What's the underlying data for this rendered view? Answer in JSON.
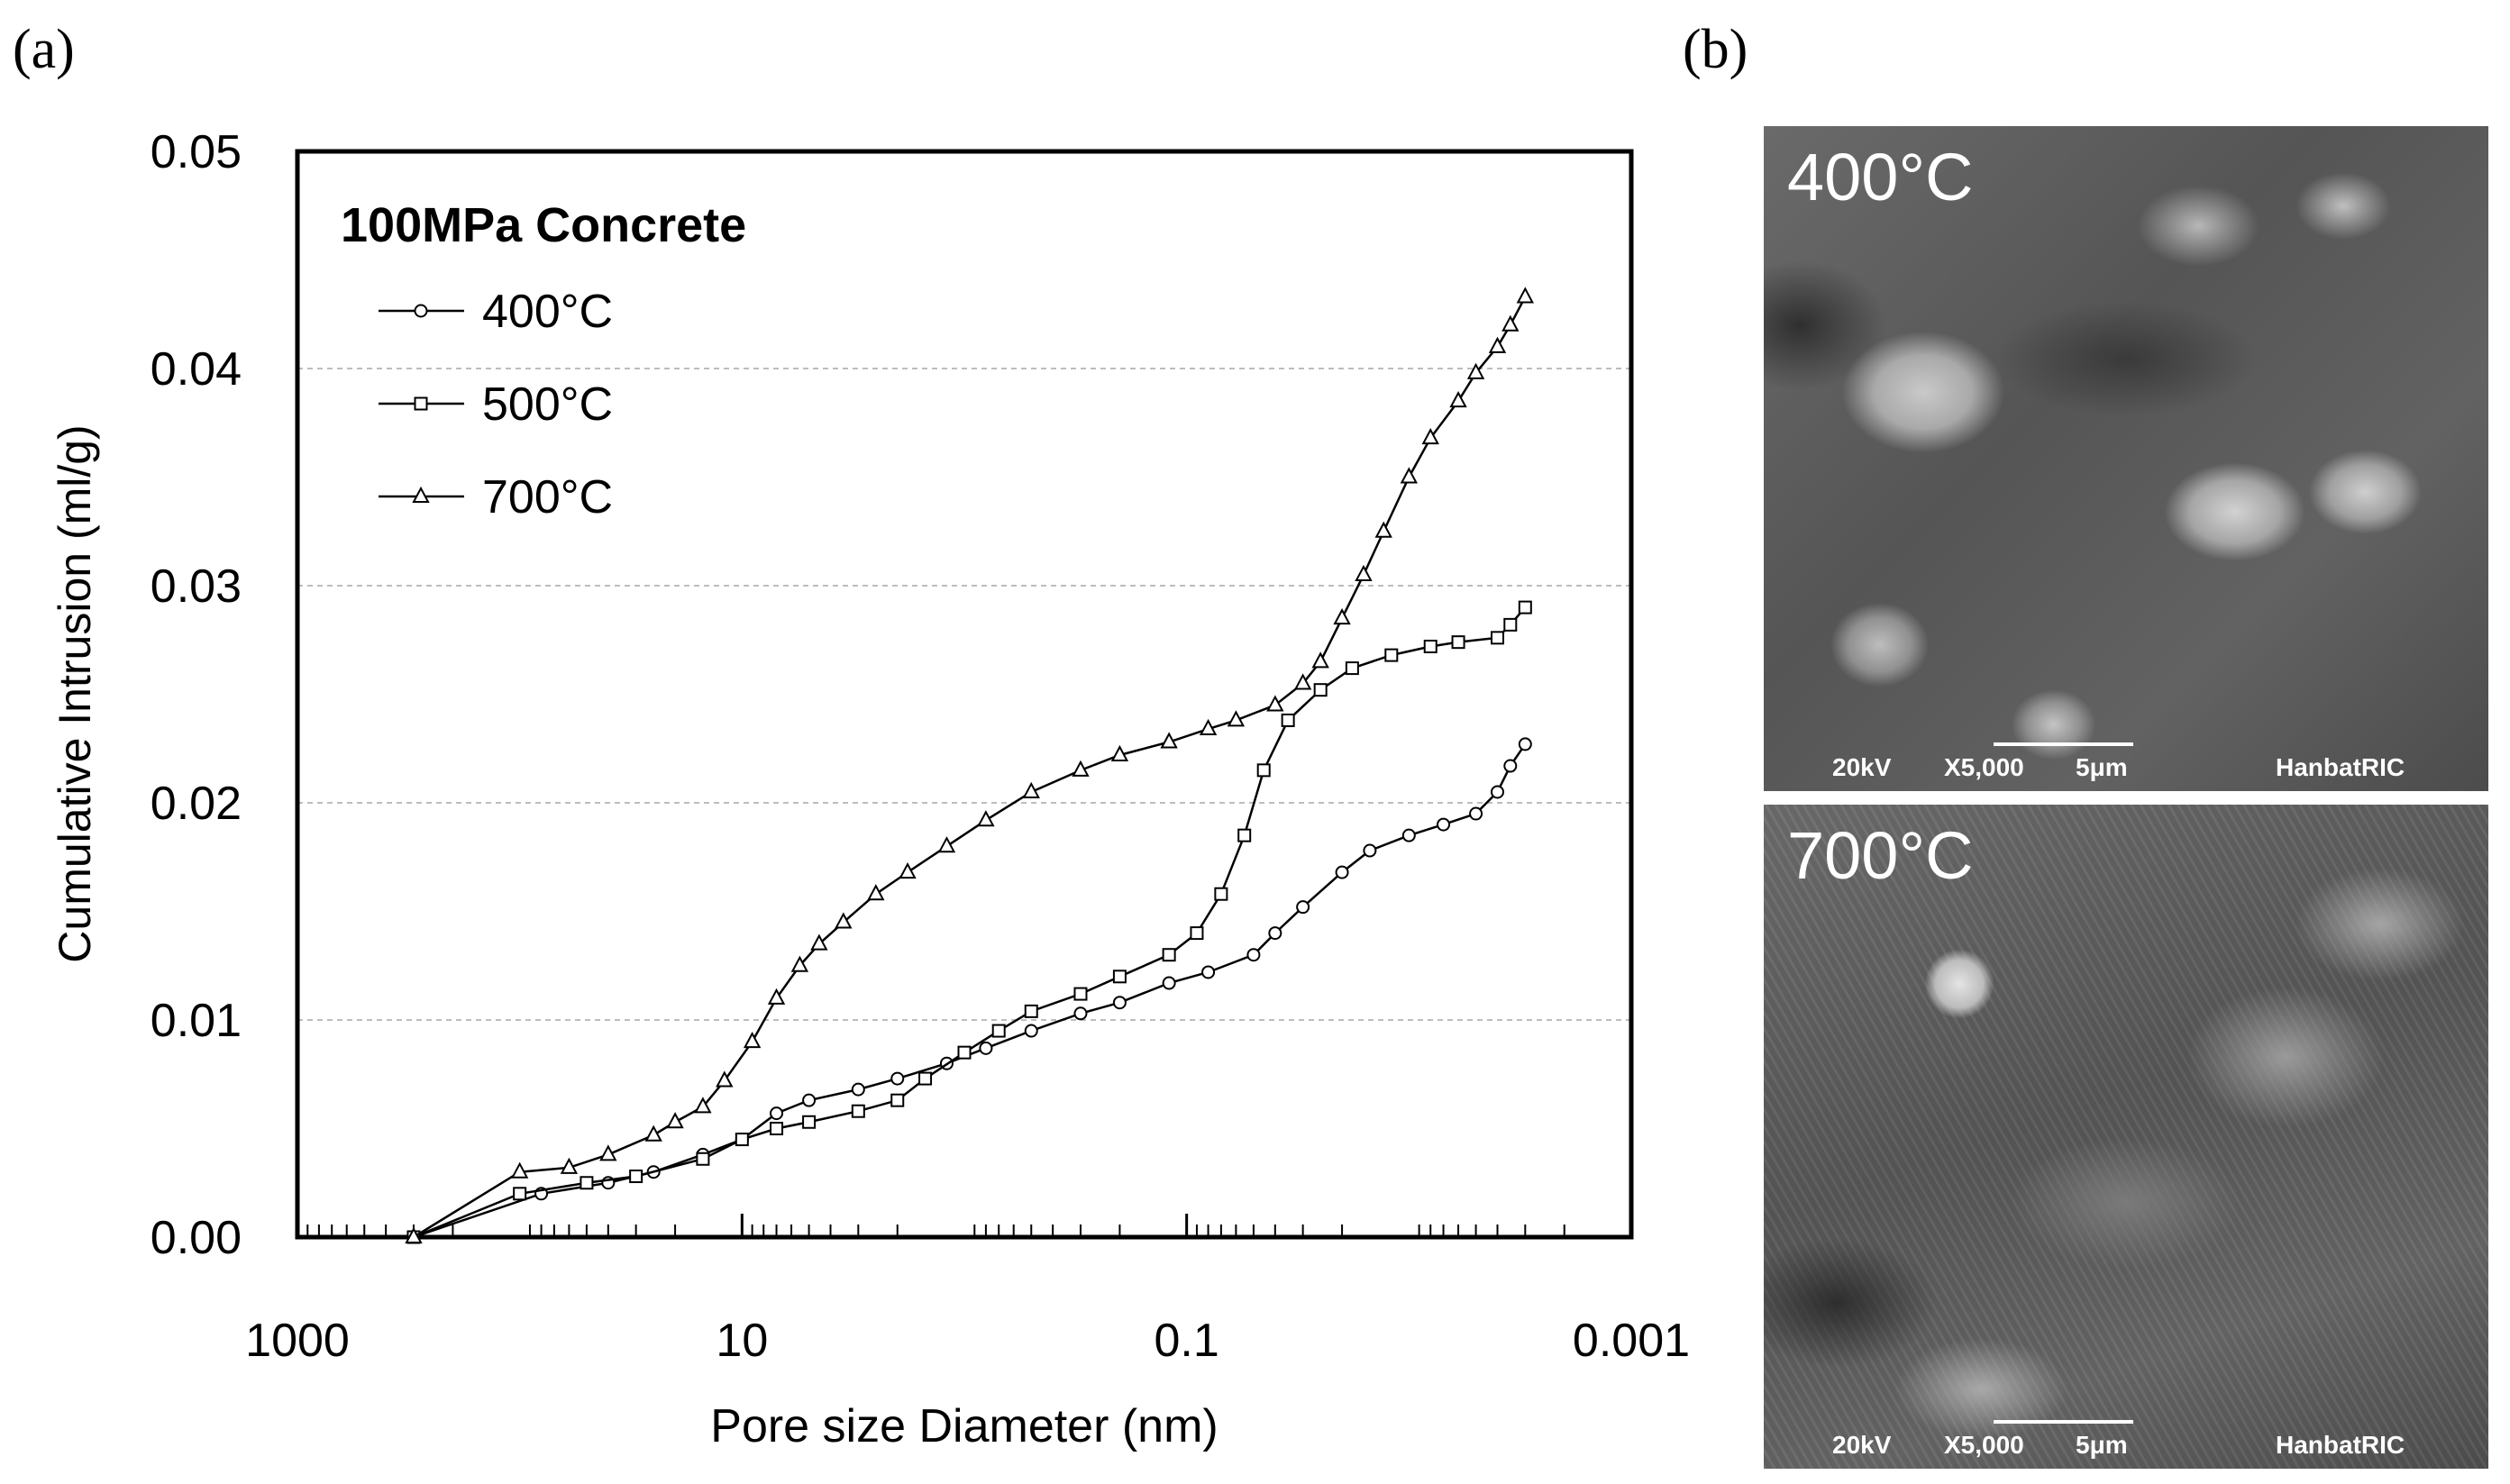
{
  "panels": {
    "a": "(a)",
    "b": "(b)"
  },
  "chart_data": {
    "type": "line",
    "title": "100MPa Concrete",
    "xlabel": "Pore size Diameter (nm)",
    "ylabel": "Cumulative Intrusion (ml/g)",
    "x_scale": "log",
    "x_reversed": true,
    "xlim": [
      1000,
      0.001
    ],
    "ylim": [
      0,
      0.05
    ],
    "x_ticks": [
      1000,
      10,
      0.1,
      0.001
    ],
    "x_tick_labels": [
      "1000",
      "10",
      "0.1",
      "0.001"
    ],
    "y_ticks": [
      0,
      0.01,
      0.02,
      0.03,
      0.04,
      0.05
    ],
    "y_tick_labels": [
      "0.00",
      "0.01",
      "0.02",
      "0.03",
      "0.04",
      "0.05"
    ],
    "grid": "horizontal dashed",
    "legend_position": "top-left",
    "series": [
      {
        "name": "400°C",
        "marker": "circle",
        "points": [
          [
            300,
            0.0
          ],
          [
            80,
            0.002
          ],
          [
            40,
            0.0025
          ],
          [
            25,
            0.003
          ],
          [
            15,
            0.0038
          ],
          [
            10,
            0.0045
          ],
          [
            7,
            0.0057
          ],
          [
            5,
            0.0063
          ],
          [
            3,
            0.0068
          ],
          [
            2,
            0.0073
          ],
          [
            1.2,
            0.008
          ],
          [
            0.8,
            0.0087
          ],
          [
            0.5,
            0.0095
          ],
          [
            0.3,
            0.0103
          ],
          [
            0.2,
            0.0108
          ],
          [
            0.12,
            0.0117
          ],
          [
            0.08,
            0.0122
          ],
          [
            0.05,
            0.013
          ],
          [
            0.04,
            0.014
          ],
          [
            0.03,
            0.0152
          ],
          [
            0.02,
            0.0168
          ],
          [
            0.015,
            0.0178
          ],
          [
            0.01,
            0.0185
          ],
          [
            0.007,
            0.019
          ],
          [
            0.005,
            0.0195
          ],
          [
            0.004,
            0.0205
          ],
          [
            0.0035,
            0.0217
          ],
          [
            0.003,
            0.0227
          ]
        ]
      },
      {
        "name": "500°C",
        "marker": "square",
        "points": [
          [
            300,
            0.0
          ],
          [
            100,
            0.002
          ],
          [
            50,
            0.0025
          ],
          [
            30,
            0.0028
          ],
          [
            15,
            0.0036
          ],
          [
            10,
            0.0045
          ],
          [
            7,
            0.005
          ],
          [
            5,
            0.0053
          ],
          [
            3,
            0.0058
          ],
          [
            2,
            0.0063
          ],
          [
            1.5,
            0.0073
          ],
          [
            1,
            0.0085
          ],
          [
            0.7,
            0.0095
          ],
          [
            0.5,
            0.0104
          ],
          [
            0.3,
            0.0112
          ],
          [
            0.2,
            0.012
          ],
          [
            0.12,
            0.013
          ],
          [
            0.09,
            0.014
          ],
          [
            0.07,
            0.0158
          ],
          [
            0.055,
            0.0185
          ],
          [
            0.045,
            0.0215
          ],
          [
            0.035,
            0.0238
          ],
          [
            0.025,
            0.0252
          ],
          [
            0.018,
            0.0262
          ],
          [
            0.012,
            0.0268
          ],
          [
            0.008,
            0.0272
          ],
          [
            0.006,
            0.0274
          ],
          [
            0.004,
            0.0276
          ],
          [
            0.0035,
            0.0282
          ],
          [
            0.003,
            0.029
          ]
        ]
      },
      {
        "name": "700°C",
        "marker": "triangle",
        "points": [
          [
            300,
            0.0
          ],
          [
            100,
            0.003
          ],
          [
            60,
            0.0032
          ],
          [
            40,
            0.0038
          ],
          [
            25,
            0.0047
          ],
          [
            20,
            0.0053
          ],
          [
            15,
            0.006
          ],
          [
            12,
            0.0072
          ],
          [
            9,
            0.009
          ],
          [
            7,
            0.011
          ],
          [
            5.5,
            0.0125
          ],
          [
            4.5,
            0.0135
          ],
          [
            3.5,
            0.0145
          ],
          [
            2.5,
            0.0158
          ],
          [
            1.8,
            0.0168
          ],
          [
            1.2,
            0.018
          ],
          [
            0.8,
            0.0192
          ],
          [
            0.5,
            0.0205
          ],
          [
            0.3,
            0.0215
          ],
          [
            0.2,
            0.0222
          ],
          [
            0.12,
            0.0228
          ],
          [
            0.08,
            0.0234
          ],
          [
            0.06,
            0.0238
          ],
          [
            0.04,
            0.0245
          ],
          [
            0.03,
            0.0255
          ],
          [
            0.025,
            0.0265
          ],
          [
            0.02,
            0.0285
          ],
          [
            0.016,
            0.0305
          ],
          [
            0.013,
            0.0325
          ],
          [
            0.01,
            0.035
          ],
          [
            0.008,
            0.0368
          ],
          [
            0.006,
            0.0385
          ],
          [
            0.005,
            0.0398
          ],
          [
            0.004,
            0.041
          ],
          [
            0.0035,
            0.042
          ],
          [
            0.003,
            0.0433
          ]
        ]
      }
    ]
  },
  "sem_images": [
    {
      "temperature": "400°C",
      "voltage": "20kV",
      "magnification": "X5,000",
      "scale_bar": "5μm",
      "lab": "HanbatRIC"
    },
    {
      "temperature": "700°C",
      "voltage": "20kV",
      "magnification": "X5,000",
      "scale_bar": "5μm",
      "lab": "HanbatRIC"
    }
  ]
}
